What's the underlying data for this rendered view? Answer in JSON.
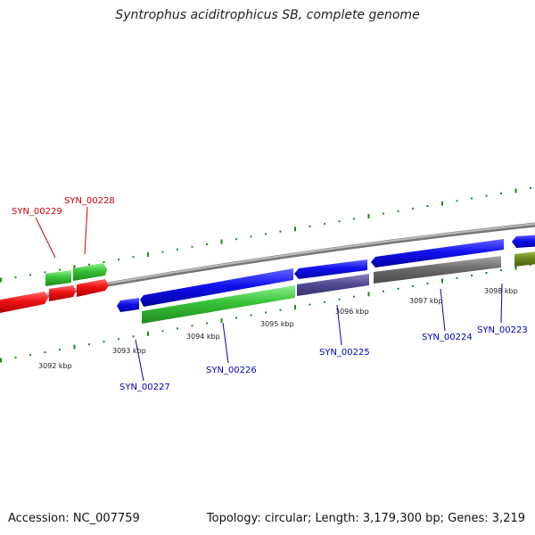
{
  "title": "Syntrophus aciditrophicus SB, complete genome",
  "footer": {
    "accession": "Accession: NC_007759",
    "stats": "Topology: circular; Length: 3,179,300 bp; Genes: 3,219"
  },
  "ticks": [
    "3092 kbp",
    "3093 kbp",
    "3094 kbp",
    "3095 kbp",
    "3096 kbp",
    "3097 kbp",
    "3098 kbp"
  ],
  "colors": {
    "forward_gene": "#dd1111",
    "forward_rna": "#33bb33",
    "reverse_gene": "#1111dd",
    "reverse_rna": "#33bb33",
    "reverse_purple": "#504a8e",
    "reverse_gray": "#6a6a6a",
    "reverse_olive": "#6e8a1e",
    "backbone": "#9a9a9a",
    "gc_dots": "#1f8a1f",
    "label_forward": "#cc0000",
    "label_reverse": "#0000bb"
  },
  "labels": {
    "forward": [
      "SYN_00229",
      "SYN_00228"
    ],
    "reverse": [
      "SYN_00227",
      "SYN_00226",
      "SYN_00225",
      "SYN_00224",
      "SYN_00223"
    ]
  }
}
